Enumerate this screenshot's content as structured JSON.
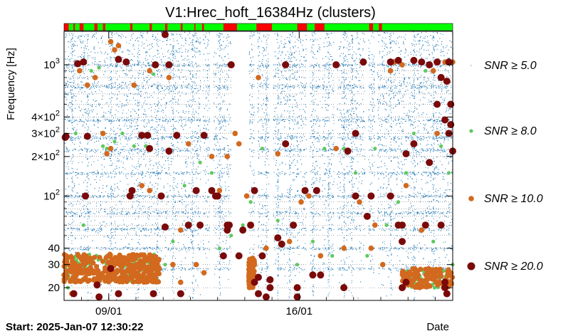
{
  "chart_data": {
    "type": "scatter",
    "title": "V1:Hrec_hoft_16384Hz (clusters)",
    "ylabel": "Frequency [Hz]",
    "xlabel": "Date",
    "y_scale": "log",
    "ylim": [
      16,
      1800
    ],
    "x_ticks": [
      {
        "label": "09/01",
        "value": 0.115
      },
      {
        "label": "16/01",
        "value": 0.605
      }
    ],
    "y_ticks": [
      {
        "label": "20",
        "value": 20,
        "major": true
      },
      {
        "label": "30",
        "value": 30,
        "major": true
      },
      {
        "label": "40",
        "value": 40,
        "major": true
      },
      {
        "label": "10^2",
        "value": 100,
        "major": true
      },
      {
        "label": "2×10^2",
        "value": 200,
        "major": true
      },
      {
        "label": "3×10^2",
        "value": 300,
        "major": true
      },
      {
        "label": "4×10^2",
        "value": 400,
        "major": true
      },
      {
        "label": "10^3",
        "value": 1000,
        "major": true
      }
    ],
    "start_text": "Start: 2025-Jan-07 12:30:22",
    "legend_position": "right",
    "series": [
      {
        "name": "SNR ≥ 5.0",
        "threshold": "5.0",
        "color": "#1f77b4",
        "marker": "tiny"
      },
      {
        "name": "SNR ≥ 8.0",
        "threshold": "8.0",
        "color": "#5ec95e",
        "marker": "small"
      },
      {
        "name": "SNR ≥ 10.0",
        "threshold": "10.0",
        "color": "#d2691e",
        "marker": "medium"
      },
      {
        "name": "SNR ≥ 20.0",
        "threshold": "20.0",
        "color": "#7a0a0a",
        "marker": "large"
      }
    ],
    "segment_bar": {
      "good_color": "#00ff00",
      "bad_color": "#ff0000",
      "bad_intervals": [
        [
          0.0,
          0.012
        ],
        [
          0.024,
          0.028
        ],
        [
          0.04,
          0.05
        ],
        [
          0.078,
          0.086
        ],
        [
          0.1,
          0.106
        ],
        [
          0.17,
          0.176
        ],
        [
          0.22,
          0.226
        ],
        [
          0.26,
          0.266
        ],
        [
          0.3,
          0.305
        ],
        [
          0.335,
          0.338
        ],
        [
          0.355,
          0.36
        ],
        [
          0.41,
          0.445
        ],
        [
          0.495,
          0.535
        ],
        [
          0.6,
          0.625
        ],
        [
          0.645,
          0.67
        ],
        [
          0.785,
          0.795
        ],
        [
          0.81,
          0.818
        ]
      ]
    },
    "gaps": [
      [
        0.352,
        0.356
      ],
      [
        0.375,
        0.384
      ],
      [
        0.43,
        0.475
      ],
      [
        0.49,
        0.497
      ],
      [
        0.528,
        0.538
      ],
      [
        0.625,
        0.632
      ],
      [
        0.66,
        0.663
      ],
      [
        0.695,
        0.702
      ],
      [
        0.775,
        0.782
      ],
      [
        0.8,
        0.805
      ]
    ],
    "snr20_points": [
      [
        0.003,
        280
      ],
      [
        0.005,
        285
      ],
      [
        0.05,
        1050
      ],
      [
        0.055,
        100
      ],
      [
        0.06,
        285
      ],
      [
        0.035,
        1020
      ],
      [
        0.025,
        18
      ],
      [
        0.09,
        17
      ],
      [
        0.085,
        21
      ],
      [
        0.12,
        28
      ],
      [
        0.14,
        1100
      ],
      [
        0.14,
        18
      ],
      [
        0.16,
        1050
      ],
      [
        0.17,
        100
      ],
      [
        0.175,
        110
      ],
      [
        0.2,
        290
      ],
      [
        0.215,
        290
      ],
      [
        0.22,
        230
      ],
      [
        0.235,
        1000
      ],
      [
        0.23,
        18
      ],
      [
        0.27,
        1000
      ],
      [
        0.25,
        100
      ],
      [
        0.26,
        58
      ],
      [
        0.26,
        1700
      ],
      [
        0.27,
        220
      ],
      [
        0.29,
        290
      ],
      [
        0.3,
        18
      ],
      [
        0.32,
        60
      ],
      [
        0.34,
        110
      ],
      [
        0.35,
        60
      ],
      [
        0.36,
        290
      ],
      [
        0.38,
        110
      ],
      [
        0.39,
        100
      ],
      [
        0.395,
        100
      ],
      [
        0.41,
        35
      ],
      [
        0.42,
        55
      ],
      [
        0.42,
        60
      ],
      [
        0.425,
        60
      ],
      [
        0.43,
        1000
      ],
      [
        0.45,
        35
      ],
      [
        0.46,
        55
      ],
      [
        0.48,
        60
      ],
      [
        0.49,
        110
      ],
      [
        0.49,
        22
      ],
      [
        0.5,
        24
      ],
      [
        0.5,
        18
      ],
      [
        0.51,
        35
      ],
      [
        0.52,
        17
      ],
      [
        0.53,
        23
      ],
      [
        0.53,
        20
      ],
      [
        0.55,
        48
      ],
      [
        0.56,
        43
      ],
      [
        0.57,
        1000
      ],
      [
        0.57,
        250
      ],
      [
        0.59,
        60
      ],
      [
        0.6,
        17
      ],
      [
        0.6,
        20
      ],
      [
        0.62,
        110
      ],
      [
        0.64,
        25
      ],
      [
        0.65,
        110
      ],
      [
        0.66,
        25
      ],
      [
        0.7,
        1000
      ],
      [
        0.72,
        20
      ],
      [
        0.73,
        220
      ],
      [
        0.75,
        100
      ],
      [
        0.75,
        300
      ],
      [
        0.77,
        1050
      ],
      [
        0.78,
        70
      ],
      [
        0.79,
        100
      ],
      [
        0.84,
        100
      ],
      [
        0.86,
        60
      ],
      [
        0.87,
        45
      ],
      [
        0.88,
        22
      ],
      [
        0.9,
        1080
      ],
      [
        0.87,
        20
      ],
      [
        0.84,
        1050
      ],
      [
        0.86,
        1080
      ],
      [
        0.87,
        60
      ],
      [
        0.88,
        210
      ],
      [
        0.9,
        250
      ],
      [
        0.92,
        1050
      ],
      [
        0.94,
        1000
      ],
      [
        0.93,
        60
      ],
      [
        0.94,
        180
      ],
      [
        0.96,
        500
      ],
      [
        0.96,
        1050
      ],
      [
        0.97,
        60
      ],
      [
        0.98,
        22
      ],
      [
        0.98,
        20
      ],
      [
        0.985,
        18
      ],
      [
        0.99,
        1050
      ],
      [
        0.98,
        380
      ],
      [
        0.995,
        500
      ],
      [
        0.995,
        350
      ],
      [
        0.99,
        300
      ],
      [
        1.0,
        220
      ],
      [
        0.97,
        800
      ],
      [
        0.985,
        750
      ]
    ],
    "snr10_points": [
      [
        0.0,
        25
      ],
      [
        0.02,
        18
      ],
      [
        0.04,
        900
      ],
      [
        0.06,
        700
      ],
      [
        0.08,
        800
      ],
      [
        0.1,
        300
      ],
      [
        0.11,
        210
      ],
      [
        0.12,
        230
      ],
      [
        0.12,
        1500
      ],
      [
        0.13,
        1300
      ],
      [
        0.14,
        1400
      ],
      [
        0.18,
        700
      ],
      [
        0.2,
        120
      ],
      [
        0.22,
        110
      ],
      [
        0.22,
        900
      ],
      [
        0.27,
        800
      ],
      [
        0.28,
        30
      ],
      [
        0.3,
        22
      ],
      [
        0.3,
        55
      ],
      [
        0.32,
        250
      ],
      [
        0.34,
        30
      ],
      [
        0.36,
        26
      ],
      [
        0.38,
        200
      ],
      [
        0.4,
        110
      ],
      [
        0.42,
        200
      ],
      [
        0.44,
        300
      ],
      [
        0.45,
        250
      ],
      [
        0.47,
        100
      ],
      [
        0.49,
        30
      ],
      [
        0.5,
        800
      ],
      [
        0.52,
        40
      ],
      [
        0.55,
        210
      ],
      [
        0.58,
        45
      ],
      [
        0.61,
        90
      ],
      [
        0.63,
        100
      ],
      [
        0.66,
        35
      ],
      [
        0.7,
        230
      ],
      [
        0.72,
        40
      ],
      [
        0.76,
        90
      ],
      [
        0.79,
        40
      ],
      [
        0.8,
        60
      ],
      [
        0.82,
        30
      ],
      [
        0.84,
        900
      ],
      [
        0.85,
        1050
      ],
      [
        0.87,
        1000
      ],
      [
        0.88,
        120
      ],
      [
        0.92,
        55
      ],
      [
        0.95,
        900
      ],
      [
        0.96,
        300
      ],
      [
        0.98,
        1050
      ],
      [
        1.0,
        1050
      ]
    ],
    "snr8_points": [
      [
        0.01,
        20
      ],
      [
        0.03,
        300
      ],
      [
        0.05,
        60
      ],
      [
        0.07,
        900
      ],
      [
        0.09,
        950
      ],
      [
        0.1,
        240
      ],
      [
        0.11,
        230
      ],
      [
        0.13,
        260
      ],
      [
        0.15,
        300
      ],
      [
        0.18,
        240
      ],
      [
        0.21,
        240
      ],
      [
        0.23,
        850
      ],
      [
        0.26,
        30
      ],
      [
        0.28,
        45
      ],
      [
        0.31,
        120
      ],
      [
        0.35,
        180
      ],
      [
        0.38,
        150
      ],
      [
        0.4,
        40
      ],
      [
        0.43,
        50
      ],
      [
        0.46,
        60
      ],
      [
        0.48,
        90
      ],
      [
        0.51,
        230
      ],
      [
        0.55,
        65
      ],
      [
        0.6,
        30
      ],
      [
        0.64,
        45
      ],
      [
        0.67,
        230
      ],
      [
        0.69,
        35
      ],
      [
        0.72,
        230
      ],
      [
        0.75,
        150
      ],
      [
        0.78,
        35
      ],
      [
        0.8,
        230
      ],
      [
        0.83,
        60
      ],
      [
        0.86,
        90
      ],
      [
        0.88,
        150
      ],
      [
        0.9,
        300
      ],
      [
        0.93,
        900
      ],
      [
        0.95,
        45
      ],
      [
        0.97,
        240
      ],
      [
        0.99,
        150
      ],
      [
        1.0,
        30
      ]
    ],
    "dense_clusters": [
      {
        "x0": 0.0,
        "x1": 0.245,
        "f0": 22,
        "f1": 36,
        "density": "high"
      },
      {
        "x0": 0.435,
        "x1": 0.49,
        "f0": 20,
        "f1": 34,
        "density": "high"
      },
      {
        "x0": 0.87,
        "x1": 1.0,
        "f0": 20,
        "f1": 28,
        "density": "medium"
      }
    ],
    "dense_bands_hz": [
      1000,
      680,
      380,
      280,
      225,
      150,
      100,
      75,
      56,
      40,
      28
    ]
  }
}
